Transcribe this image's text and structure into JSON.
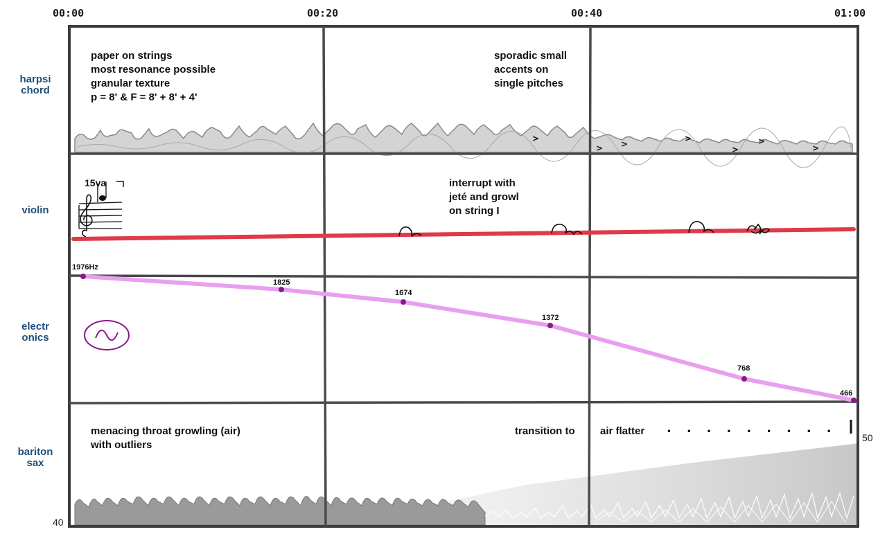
{
  "timeline": {
    "markers": [
      "00:00",
      "00:20",
      "00:40",
      "01:00"
    ]
  },
  "instruments": [
    {
      "id": "harpsichord",
      "label": "harpsi\nchord"
    },
    {
      "id": "violin",
      "label": "violin"
    },
    {
      "id": "electronics",
      "label": "electr\nonics"
    },
    {
      "id": "baritone-sax",
      "label": "bariton\nsax"
    }
  ],
  "harpsichord": {
    "note_left": "paper on strings\nmost resonance possible\ngranular texture\np = 8' & F = 8' + 8' + 4'",
    "note_right": "sporadic small\naccents on\nsingle pitches",
    "accent_mark": ">"
  },
  "violin": {
    "ottava": "15va",
    "note": "interrupt with\njeté and growl\non string I",
    "line_color": "#e03a4a"
  },
  "electronics": {
    "frequencies": [
      "1976Hz",
      "1825",
      "1674",
      "1372",
      "768",
      "466"
    ],
    "line_color": "#e8a0ee",
    "point_color": "#8a1a8a",
    "sine_icon_color": "#8a1a8a"
  },
  "baritone_sax": {
    "note_left": "menacing throat growling (air)\nwith outliers",
    "note_transition": "transition to",
    "note_flatter": "air flatter",
    "dynamic_start": "40",
    "dynamic_end": "50"
  }
}
